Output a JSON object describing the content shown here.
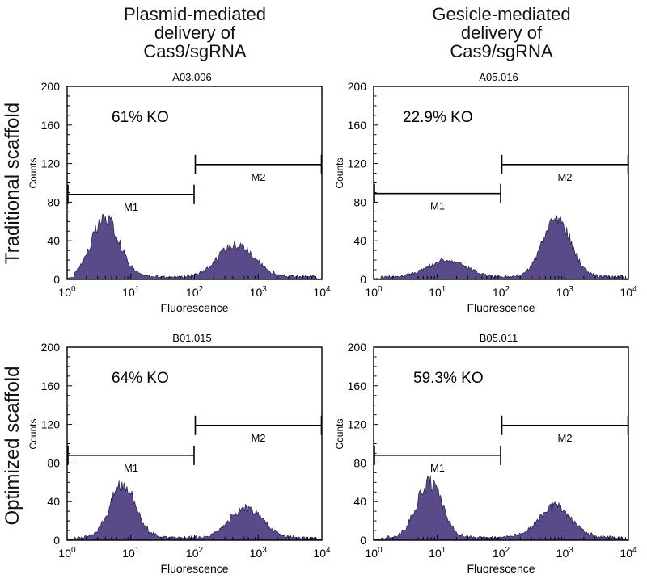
{
  "column_titles": [
    {
      "lines": [
        "Plasmid-mediated",
        "delivery of",
        "Cas9/sgRNA"
      ]
    },
    {
      "lines": [
        "Gesicle-mediated",
        "delivery of",
        "Cas9/sgRNA"
      ]
    }
  ],
  "row_titles": [
    "Traditional scaffold",
    "Optimized scaffold"
  ],
  "colors": {
    "fill": "#5a4a8a",
    "stroke": "#1a1530",
    "axis": "#000000"
  },
  "chart_data": [
    {
      "type": "area",
      "title": "A03.006",
      "annotation": "61% KO",
      "xlabel": "Fluorescence",
      "ylabel": "Counts",
      "xscale": "log",
      "xlim": [
        1,
        10000
      ],
      "ylim": [
        0,
        200
      ],
      "yticks": [
        0,
        40,
        80,
        120,
        160,
        200
      ],
      "xticks": [
        {
          "base": "10",
          "exp": "0"
        },
        {
          "base": "10",
          "exp": "1"
        },
        {
          "base": "10",
          "exp": "2"
        },
        {
          "base": "10",
          "exp": "3"
        },
        {
          "base": "10",
          "exp": "4"
        }
      ],
      "gates": [
        {
          "name": "M1",
          "from": 1,
          "to": 100,
          "y": 88
        },
        {
          "name": "M2",
          "from": 100,
          "to": 10000,
          "y": 119
        }
      ],
      "peaks": [
        {
          "center": 4,
          "height": 60,
          "width": 0.22
        },
        {
          "center": 450,
          "height": 34,
          "width": 0.28
        }
      ],
      "baseline": 3
    },
    {
      "type": "area",
      "title": "A05.016",
      "annotation": "22.9% KO",
      "xlabel": "Fluorescence",
      "ylabel": "Counts",
      "xscale": "log",
      "xlim": [
        1,
        10000
      ],
      "ylim": [
        0,
        200
      ],
      "yticks": [
        0,
        40,
        80,
        120,
        160,
        200
      ],
      "xticks": [
        {
          "base": "10",
          "exp": "0"
        },
        {
          "base": "10",
          "exp": "1"
        },
        {
          "base": "10",
          "exp": "2"
        },
        {
          "base": "10",
          "exp": "3"
        },
        {
          "base": "10",
          "exp": "4"
        }
      ],
      "gates": [
        {
          "name": "M1",
          "from": 1,
          "to": 100,
          "y": 89
        },
        {
          "name": "M2",
          "from": 100,
          "to": 10000,
          "y": 119
        }
      ],
      "peaks": [
        {
          "center": 14,
          "height": 17,
          "width": 0.3
        },
        {
          "center": 750,
          "height": 60,
          "width": 0.22
        }
      ],
      "baseline": 3
    },
    {
      "type": "area",
      "title": "B01.015",
      "annotation": "64% KO",
      "xlabel": "Fluorescence",
      "ylabel": "Counts",
      "xscale": "log",
      "xlim": [
        1,
        10000
      ],
      "ylim": [
        0,
        200
      ],
      "yticks": [
        0,
        40,
        80,
        120,
        160,
        200
      ],
      "xticks": [
        {
          "base": "10",
          "exp": "0"
        },
        {
          "base": "10",
          "exp": "1"
        },
        {
          "base": "10",
          "exp": "2"
        },
        {
          "base": "10",
          "exp": "3"
        },
        {
          "base": "10",
          "exp": "4"
        }
      ],
      "gates": [
        {
          "name": "M1",
          "from": 1,
          "to": 100,
          "y": 88
        },
        {
          "name": "M2",
          "from": 100,
          "to": 10000,
          "y": 119
        }
      ],
      "peaks": [
        {
          "center": 7.5,
          "height": 57,
          "width": 0.2
        },
        {
          "center": 650,
          "height": 30,
          "width": 0.26
        }
      ],
      "baseline": 3
    },
    {
      "type": "area",
      "title": "B05.011",
      "annotation": "59.3% KO",
      "xlabel": "Fluorescence",
      "ylabel": "Counts",
      "xscale": "log",
      "xlim": [
        1,
        10000
      ],
      "ylim": [
        0,
        200
      ],
      "yticks": [
        0,
        40,
        80,
        120,
        160,
        200
      ],
      "xticks": [
        {
          "base": "10",
          "exp": "0"
        },
        {
          "base": "10",
          "exp": "1"
        },
        {
          "base": "10",
          "exp": "2"
        },
        {
          "base": "10",
          "exp": "3"
        },
        {
          "base": "10",
          "exp": "4"
        }
      ],
      "gates": [
        {
          "name": "M1",
          "from": 1,
          "to": 100,
          "y": 88
        },
        {
          "name": "M2",
          "from": 100,
          "to": 10000,
          "y": 119
        }
      ],
      "peaks": [
        {
          "center": 7.5,
          "height": 57,
          "width": 0.2
        },
        {
          "center": 700,
          "height": 32,
          "width": 0.26
        }
      ],
      "baseline": 3
    }
  ]
}
